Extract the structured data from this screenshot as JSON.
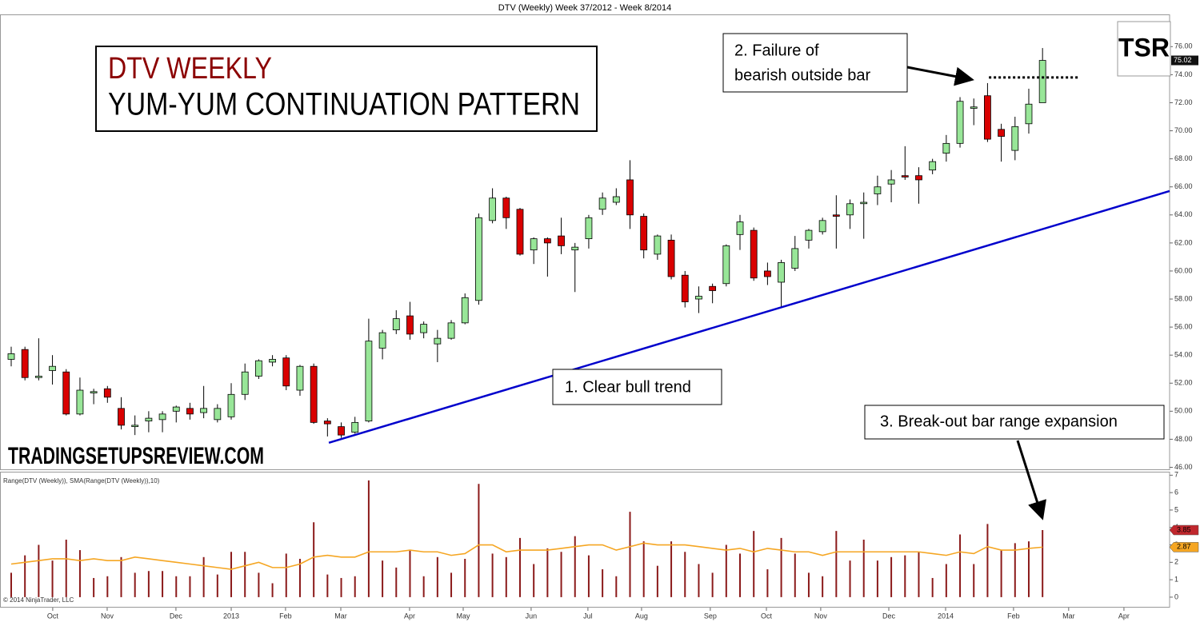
{
  "chart_data": [
    {
      "type": "candlestick",
      "title": "DTV (Weekly)  Week 37/2012 - Week 8/2014",
      "heading": [
        "DTV WEEKLY",
        "YUM-YUM CONTINUATION PATTERN"
      ],
      "watermark": "TRADINGSETUPSREVIEW.COM",
      "logo": "TSR",
      "annotations": [
        {
          "lines": [
            "1. Clear bull  trend"
          ]
        },
        {
          "lines": [
            "2. Failure of",
            "bearish outside bar"
          ]
        },
        {
          "lines": [
            "3. Break-out bar range expansion"
          ]
        }
      ],
      "categories": [
        null,
        null,
        null,
        null,
        null,
        null,
        null,
        null,
        null,
        null,
        null,
        null,
        null,
        null,
        null,
        null,
        null,
        null,
        null,
        null,
        null,
        null,
        null,
        null,
        null,
        null,
        null,
        null,
        null,
        null,
        null,
        null,
        null,
        null,
        null,
        null,
        null,
        null,
        null,
        null,
        null,
        null,
        null,
        null,
        null,
        null,
        null,
        null,
        null,
        null,
        null,
        null,
        null,
        null,
        null,
        null,
        null,
        null,
        null,
        null,
        null,
        null,
        null,
        null,
        null,
        null,
        null,
        null,
        null,
        null,
        null,
        null,
        null,
        null,
        null,
        null
      ],
      "open": [
        53.7,
        54.4,
        52.4,
        52.9,
        52.8,
        49.8,
        51.3,
        51.6,
        50.2,
        48.9,
        49.3,
        49.4,
        50.0,
        50.2,
        49.9,
        49.4,
        49.6,
        51.2,
        52.5,
        53.5,
        53.8,
        51.5,
        53.2,
        49.3,
        48.9,
        48.5,
        49.3,
        54.5,
        55.8,
        56.8,
        55.6,
        54.8,
        55.2,
        56.3,
        57.9,
        63.6,
        65.2,
        64.4,
        61.5,
        62.3,
        62.5,
        61.5,
        62.3,
        64.4,
        64.9,
        66.5,
        63.9,
        61.2,
        62.2,
        59.7,
        58.0,
        58.9,
        59.1,
        62.6,
        62.9,
        60.0,
        59.2,
        60.2,
        62.2,
        62.8,
        64.0,
        64.0,
        64.8,
        65.5,
        66.2,
        66.8,
        66.8,
        67.2,
        68.4,
        69.1,
        71.6,
        72.5,
        70.1,
        68.6,
        70.5,
        72.0
      ],
      "high": [
        54.6,
        54.6,
        55.2,
        54.0,
        53.0,
        52.4,
        51.6,
        51.8,
        51.0,
        49.7,
        50.0,
        50.0,
        50.4,
        50.6,
        51.8,
        50.5,
        52.0,
        53.4,
        53.7,
        54.0,
        54.0,
        53.3,
        53.4,
        49.5,
        49.2,
        49.6,
        56.6,
        55.8,
        57.2,
        57.8,
        56.4,
        55.8,
        56.5,
        58.4,
        64.1,
        65.9,
        65.3,
        64.5,
        62.4,
        62.4,
        63.8,
        62.0,
        64.0,
        65.6,
        65.9,
        67.9,
        64.1,
        62.6,
        62.6,
        60.0,
        58.9,
        59.1,
        61.9,
        64.0,
        63.1,
        60.6,
        60.8,
        62.5,
        63.0,
        63.8,
        65.4,
        65.1,
        65.6,
        66.8,
        67.2,
        68.9,
        67.4,
        68.0,
        69.7,
        72.4,
        72.3,
        73.4,
        70.5,
        71.0,
        73.0,
        75.9
      ],
      "low": [
        53.2,
        52.2,
        52.2,
        51.9,
        49.7,
        49.7,
        50.5,
        50.6,
        48.7,
        48.3,
        48.5,
        48.5,
        49.2,
        49.4,
        49.5,
        49.2,
        49.4,
        50.8,
        52.3,
        53.2,
        51.5,
        51.1,
        49.1,
        48.2,
        48.1,
        48.4,
        49.2,
        53.7,
        55.5,
        55.1,
        55.2,
        53.5,
        55.1,
        56.2,
        57.6,
        63.4,
        63.0,
        61.1,
        60.5,
        59.6,
        61.2,
        58.5,
        61.6,
        64.0,
        64.7,
        63.0,
        60.9,
        60.8,
        59.4,
        57.4,
        57.0,
        57.7,
        58.9,
        61.5,
        59.3,
        59.0,
        57.4,
        60.0,
        61.6,
        62.6,
        61.6,
        63.0,
        62.3,
        64.7,
        64.9,
        66.5,
        64.8,
        66.9,
        67.8,
        68.8,
        70.4,
        69.2,
        67.8,
        67.9,
        69.8,
        72.0
      ],
      "close": [
        54.1,
        52.4,
        52.5,
        53.2,
        49.8,
        51.5,
        51.4,
        51.0,
        49.0,
        49.0,
        49.5,
        49.8,
        50.3,
        49.8,
        50.2,
        50.2,
        51.2,
        52.8,
        53.6,
        53.7,
        51.8,
        53.2,
        49.2,
        49.1,
        48.3,
        49.2,
        55.0,
        55.6,
        56.6,
        55.5,
        56.2,
        55.2,
        56.3,
        58.1,
        63.8,
        65.2,
        63.8,
        61.2,
        62.3,
        62.0,
        61.8,
        61.7,
        63.8,
        65.2,
        65.3,
        64.0,
        61.5,
        62.5,
        59.6,
        57.8,
        58.2,
        58.6,
        61.8,
        63.5,
        59.5,
        59.6,
        60.6,
        61.6,
        62.9,
        63.6,
        63.9,
        64.8,
        64.9,
        66.0,
        66.5,
        66.7,
        66.5,
        67.8,
        69.1,
        72.1,
        71.7,
        69.4,
        69.6,
        70.3,
        71.9,
        75.02
      ],
      "up_color": "#98e698",
      "down_color": "#d90000",
      "trendline": {
        "x": [
          23.1,
          84.24
        ],
        "y": [
          47.75,
          65.7
        ],
        "color": "#0000cc"
      },
      "level": {
        "x": [
          71.1,
          77.6
        ],
        "y": 73.8
      },
      "xlim": [
        -0.814,
        84.24
      ],
      "xticks": [
        {
          "value": 3.02,
          "label": "Oct"
        },
        {
          "value": 6.98,
          "label": "Nov"
        },
        {
          "value": 11.98,
          "label": "Dec"
        },
        {
          "value": 16.0,
          "label": "2013"
        },
        {
          "value": 19.95,
          "label": "Feb"
        },
        {
          "value": 23.97,
          "label": "Mar"
        },
        {
          "value": 28.97,
          "label": "Apr"
        },
        {
          "value": 32.87,
          "label": "May"
        },
        {
          "value": 37.81,
          "label": "Jun"
        },
        {
          "value": 41.94,
          "label": "Jul"
        },
        {
          "value": 45.84,
          "label": "Aug"
        },
        {
          "value": 50.84,
          "label": "Sep"
        },
        {
          "value": 54.92,
          "label": "Oct"
        },
        {
          "value": 58.87,
          "label": "Nov"
        },
        {
          "value": 63.82,
          "label": "Dec"
        },
        {
          "value": 67.95,
          "label": "2014"
        },
        {
          "value": 72.89,
          "label": "Feb"
        },
        {
          "value": 76.9,
          "label": "Mar"
        },
        {
          "value": 80.92,
          "label": "Apr"
        }
      ],
      "ylim": [
        45.8,
        78.3
      ],
      "yticks": [
        {
          "value": 46,
          "label": "46.00"
        },
        {
          "value": 48,
          "label": "48.00"
        },
        {
          "value": 50,
          "label": "50.00"
        },
        {
          "value": 52,
          "label": "52.00"
        },
        {
          "value": 54,
          "label": "54.00"
        },
        {
          "value": 56,
          "label": "56.00"
        },
        {
          "value": 58,
          "label": "58.00"
        },
        {
          "value": 60,
          "label": "60.00"
        },
        {
          "value": 62,
          "label": "62.00"
        },
        {
          "value": 64,
          "label": "64.00"
        },
        {
          "value": 66,
          "label": "66.00"
        },
        {
          "value": 68,
          "label": "68.00"
        },
        {
          "value": 70,
          "label": "70.00"
        },
        {
          "value": 72,
          "label": "72.00"
        },
        {
          "value": 74,
          "label": "74.00"
        },
        {
          "value": 76,
          "label": "76.00"
        }
      ],
      "grid": false
    },
    {
      "type": "bar",
      "label": "Range(DTV (Weekly)), SMA(Range(DTV (Weekly)),10)",
      "copyright": "© 2014 NinjaTrader, LLC",
      "series": [
        {
          "type": "bar",
          "color": "#8b1a1a",
          "tag_color": "#c0272d",
          "values": [
            1.4,
            2.4,
            3.0,
            2.1,
            3.3,
            2.7,
            1.1,
            1.2,
            2.3,
            1.4,
            1.5,
            1.5,
            1.2,
            1.2,
            2.3,
            1.3,
            2.6,
            2.6,
            1.4,
            0.8,
            2.5,
            2.2,
            4.3,
            1.3,
            1.1,
            1.2,
            6.7,
            2.1,
            1.7,
            2.7,
            1.2,
            2.3,
            1.4,
            2.2,
            6.5,
            2.5,
            2.3,
            3.4,
            1.9,
            2.8,
            2.6,
            3.5,
            2.4,
            1.6,
            1.2,
            4.9,
            3.2,
            1.8,
            3.2,
            2.6,
            1.9,
            1.4,
            3.0,
            2.5,
            3.8,
            1.6,
            3.4,
            2.5,
            1.4,
            1.2,
            3.8,
            2.1,
            3.3,
            2.1,
            2.3,
            2.4,
            2.6,
            1.1,
            1.9,
            3.6,
            1.9,
            4.2,
            2.7,
            3.1,
            3.2,
            3.85
          ]
        },
        {
          "type": "line",
          "color": "#f5a623",
          "tag_color": "#f5a623",
          "values": [
            1.9,
            2.0,
            2.1,
            2.2,
            2.2,
            2.1,
            2.2,
            2.1,
            2.1,
            2.3,
            2.2,
            2.1,
            2.0,
            1.9,
            1.8,
            1.7,
            1.6,
            1.8,
            2.0,
            1.7,
            1.7,
            1.9,
            2.3,
            2.4,
            2.3,
            2.3,
            2.6,
            2.6,
            2.6,
            2.7,
            2.6,
            2.6,
            2.4,
            2.5,
            3.0,
            3.0,
            2.6,
            2.7,
            2.7,
            2.7,
            2.8,
            2.9,
            3.0,
            3.0,
            2.7,
            2.9,
            3.1,
            3.0,
            3.0,
            3.0,
            2.9,
            2.8,
            2.7,
            2.8,
            2.6,
            2.8,
            2.7,
            2.6,
            2.6,
            2.4,
            2.6,
            2.6,
            2.6,
            2.6,
            2.6,
            2.6,
            2.6,
            2.5,
            2.4,
            2.6,
            2.5,
            2.9,
            2.7,
            2.7,
            2.8,
            2.87
          ]
        }
      ],
      "ylim": [
        -0.6,
        7.2
      ],
      "yticks": [
        0,
        1,
        2,
        3,
        4,
        5,
        6,
        7
      ]
    }
  ]
}
